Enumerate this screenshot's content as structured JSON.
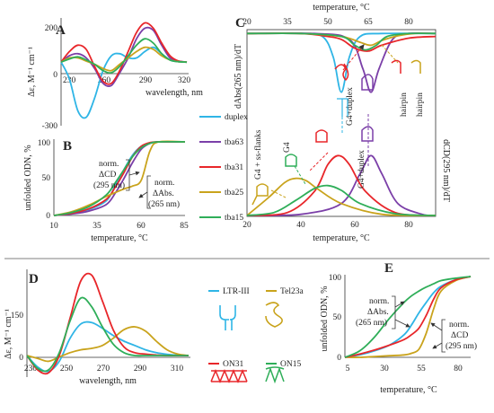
{
  "colors": {
    "blue": "#2fb5e6",
    "purple": "#7b3fa8",
    "red": "#e8262a",
    "gold": "#c9a31c",
    "green": "#2fae59",
    "axis": "#333333"
  },
  "panelA": {
    "letter": "A",
    "ylabel": "Δε, M⁻¹ cm⁻¹",
    "xlabel": "wavelength, nm",
    "yticks": [
      "200",
      "0",
      "-300"
    ],
    "xticks": [
      "230",
      "260",
      "290",
      "320"
    ]
  },
  "panelB": {
    "letter": "B",
    "ylabel": "unfolded ODN, %",
    "xlabel": "temperature, °C",
    "yticks": [
      "100",
      "50",
      "0"
    ],
    "xticks": [
      "10",
      "35",
      "60",
      "85"
    ],
    "anno_cd": [
      "norm.",
      "ΔCD",
      "(295 nm)"
    ],
    "anno_abs": [
      "norm.",
      "ΔAbs.",
      "(265 nm)"
    ]
  },
  "panelC": {
    "letter": "C",
    "top_xlabel": "temperature, °C",
    "top_xticks": [
      "20",
      "35",
      "50",
      "65",
      "80"
    ],
    "bottom_xlabel": "temperature, °C",
    "bottom_xticks": [
      "20",
      "40",
      "60",
      "80"
    ],
    "ylabel_top": "dAbs(265 nm)/dT",
    "ylabel_bottom": "dCD(295 nm)/dT",
    "labels": {
      "g4_duplex_top": "G4+duplex",
      "hairpin_red": "hairpin",
      "hairpin_gold": "hairpin",
      "g4_ssflanks": "G4 + ss-flanks",
      "g4": "G4",
      "g4_duplex_bottom": "G4+duplex"
    }
  },
  "legend_main": [
    {
      "name": "duplex",
      "color": "#2fb5e6"
    },
    {
      "name": "tba63",
      "color": "#7b3fa8"
    },
    {
      "name": "tba31",
      "color": "#e8262a"
    },
    {
      "name": "tba25",
      "color": "#c9a31c"
    },
    {
      "name": "tba15",
      "color": "#2fae59"
    }
  ],
  "panelD": {
    "letter": "D",
    "ylabel": "Δε, M⁻¹ cm⁻¹",
    "xlabel": "wavelength, nm",
    "yticks": [
      "150",
      "0"
    ],
    "xticks": [
      "230",
      "250",
      "270",
      "290",
      "310"
    ],
    "legend": [
      {
        "name": "LTR-III",
        "color": "#2fb5e6"
      },
      {
        "name": "Tel23a",
        "color": "#c9a31c"
      },
      {
        "name": "ON31",
        "color": "#e8262a"
      },
      {
        "name": "ON15",
        "color": "#2fae59"
      }
    ]
  },
  "panelE": {
    "letter": "E",
    "ylabel": "unfolded ODN, %",
    "xlabel": "temperature, °C",
    "yticks": [
      "100",
      "50",
      "0"
    ],
    "xticks": [
      "5",
      "30",
      "55",
      "80"
    ],
    "anno_abs": [
      "norm.",
      "ΔAbs.",
      "(265 nm)"
    ],
    "anno_cd": [
      "norm.",
      "ΔCD",
      "(295 nm)"
    ]
  },
  "chart_data": [
    {
      "panel": "A",
      "type": "line",
      "xlabel": "wavelength, nm",
      "ylabel": "Δε, M⁻¹ cm⁻¹",
      "xlim": [
        230,
        320
      ],
      "ylim": [
        -300,
        200
      ],
      "series": [
        {
          "name": "duplex",
          "x": [
            230,
            236,
            242,
            248,
            254,
            260,
            266,
            272,
            278,
            284,
            290,
            296,
            302,
            308,
            314,
            320
          ],
          "y": [
            0,
            -80,
            -230,
            -260,
            -170,
            -40,
            30,
            40,
            20,
            20,
            50,
            70,
            40,
            10,
            2,
            0
          ]
        },
        {
          "name": "tba63",
          "x": [
            230,
            236,
            242,
            248,
            254,
            260,
            266,
            272,
            278,
            284,
            290,
            296,
            302,
            308,
            314,
            320
          ],
          "y": [
            0,
            30,
            40,
            20,
            -30,
            -100,
            -110,
            -50,
            20,
            110,
            160,
            150,
            80,
            20,
            5,
            0
          ]
        },
        {
          "name": "tba31",
          "x": [
            230,
            236,
            242,
            248,
            254,
            260,
            266,
            272,
            278,
            284,
            290,
            296,
            302,
            308,
            314,
            320
          ],
          "y": [
            0,
            50,
            80,
            60,
            -20,
            -90,
            -100,
            -40,
            50,
            140,
            185,
            160,
            90,
            30,
            5,
            0
          ]
        },
        {
          "name": "tba25",
          "x": [
            230,
            236,
            242,
            248,
            254,
            260,
            266,
            272,
            278,
            284,
            290,
            296,
            302,
            308,
            314,
            320
          ],
          "y": [
            0,
            20,
            20,
            5,
            -10,
            -30,
            -40,
            -10,
            20,
            50,
            70,
            60,
            30,
            10,
            2,
            0
          ]
        },
        {
          "name": "tba15",
          "x": [
            230,
            236,
            242,
            248,
            254,
            260,
            266,
            272,
            278,
            284,
            290,
            296,
            302,
            308,
            314,
            320
          ],
          "y": [
            0,
            15,
            25,
            10,
            -10,
            -40,
            -50,
            -20,
            30,
            80,
            110,
            90,
            40,
            10,
            2,
            0
          ]
        }
      ]
    },
    {
      "panel": "B",
      "type": "line",
      "xlabel": "temperature, °C",
      "ylabel": "unfolded ODN, %",
      "xlim": [
        10,
        85
      ],
      "ylim": [
        0,
        100
      ],
      "series": [
        {
          "name": "duplex",
          "x": [
            10,
            20,
            30,
            40,
            45,
            50,
            55,
            60,
            65,
            70,
            85
          ],
          "y": [
            0,
            3,
            8,
            20,
            40,
            62,
            82,
            94,
            98,
            100,
            100
          ]
        },
        {
          "name": "tba63",
          "x": [
            10,
            20,
            30,
            40,
            45,
            50,
            55,
            60,
            65,
            70,
            85
          ],
          "y": [
            0,
            2,
            6,
            15,
            30,
            50,
            72,
            90,
            98,
            100,
            100
          ]
        },
        {
          "name": "tba31",
          "x": [
            10,
            20,
            30,
            40,
            45,
            50,
            55,
            60,
            65,
            70,
            85
          ],
          "y": [
            0,
            3,
            9,
            22,
            38,
            58,
            80,
            94,
            99,
            100,
            100
          ]
        },
        {
          "name": "tba25",
          "x": [
            10,
            20,
            30,
            40,
            45,
            50,
            55,
            60,
            65,
            70,
            85
          ],
          "y": [
            0,
            5,
            14,
            26,
            31,
            36,
            40,
            48,
            88,
            100,
            100
          ]
        },
        {
          "name": "tba15",
          "x": [
            10,
            20,
            30,
            40,
            45,
            50,
            55,
            60,
            65,
            70,
            85
          ],
          "y": [
            0,
            4,
            12,
            28,
            44,
            62,
            80,
            92,
            98,
            100,
            100
          ]
        }
      ]
    },
    {
      "panel": "C-top",
      "type": "line",
      "xlabel": "temperature, °C",
      "ylabel": "dAbs(265 nm)/dT",
      "xlim": [
        20,
        90
      ],
      "series": [
        {
          "name": "duplex",
          "x": [
            20,
            40,
            48,
            52,
            55,
            58,
            62,
            70,
            90
          ],
          "y": [
            0,
            0,
            -0.05,
            -0.4,
            -1.0,
            -0.4,
            -0.05,
            0,
            0
          ]
        },
        {
          "name": "tba63",
          "x": [
            20,
            45,
            58,
            63,
            66,
            69,
            74,
            80,
            90
          ],
          "y": [
            0,
            0,
            -0.1,
            -0.6,
            -1.0,
            -0.6,
            -0.1,
            0,
            0
          ]
        },
        {
          "name": "tba31",
          "x": [
            20,
            40,
            50,
            55,
            60,
            65,
            70,
            80,
            90
          ],
          "y": [
            0,
            0,
            -0.05,
            -0.1,
            -0.25,
            -0.3,
            -0.2,
            -0.08,
            -0.05
          ]
        },
        {
          "name": "tba25",
          "x": [
            20,
            40,
            55,
            62,
            66,
            70,
            76,
            82,
            90
          ],
          "y": [
            0,
            0,
            -0.05,
            -0.15,
            -0.2,
            -0.12,
            -0.04,
            0,
            0
          ]
        },
        {
          "name": "tba15",
          "x": [
            20,
            40,
            55,
            60,
            64,
            68,
            72,
            80,
            90
          ],
          "y": [
            0,
            0,
            -0.05,
            -0.2,
            -0.28,
            -0.2,
            -0.05,
            0,
            0
          ]
        }
      ]
    },
    {
      "panel": "C-bottom",
      "type": "line",
      "xlabel": "temperature, °C",
      "ylabel": "dCD(295 nm)/dT",
      "xlim": [
        20,
        90
      ],
      "series": [
        {
          "name": "tba63",
          "x": [
            20,
            40,
            55,
            62,
            66,
            70,
            76,
            85,
            90
          ],
          "y": [
            0,
            0.02,
            0.2,
            0.7,
            1.0,
            0.7,
            0.2,
            0.02,
            0
          ]
        },
        {
          "name": "tba31",
          "x": [
            20,
            35,
            45,
            50,
            54,
            58,
            64,
            75,
            90
          ],
          "y": [
            0,
            0.05,
            0.4,
            0.85,
            1.0,
            0.85,
            0.4,
            0.05,
            0
          ]
        },
        {
          "name": "tba25",
          "x": [
            20,
            28,
            34,
            38,
            42,
            46,
            55,
            70,
            90
          ],
          "y": [
            0,
            0.3,
            0.55,
            0.62,
            0.58,
            0.45,
            0.2,
            0.02,
            0
          ]
        },
        {
          "name": "tba15",
          "x": [
            20,
            30,
            38,
            45,
            50,
            55,
            62,
            75,
            90
          ],
          "y": [
            0,
            0.05,
            0.25,
            0.45,
            0.5,
            0.42,
            0.2,
            0.03,
            0
          ]
        }
      ]
    },
    {
      "panel": "D",
      "type": "line",
      "xlabel": "wavelength, nm",
      "ylabel": "Δε, M⁻¹ cm⁻¹",
      "xlim": [
        230,
        320
      ],
      "ylim": [
        -75,
        300
      ],
      "series": [
        {
          "name": "LTR-III",
          "x": [
            230,
            236,
            242,
            248,
            254,
            260,
            266,
            272,
            278,
            284,
            290,
            296,
            302,
            308,
            314,
            320
          ],
          "y": [
            0,
            -40,
            -55,
            -20,
            60,
            110,
            115,
            95,
            70,
            50,
            35,
            20,
            10,
            4,
            1,
            0
          ]
        },
        {
          "name": "Tel23a",
          "x": [
            230,
            236,
            242,
            248,
            254,
            260,
            266,
            272,
            278,
            284,
            290,
            296,
            302,
            308,
            314,
            320
          ],
          "y": [
            0,
            -10,
            -20,
            -5,
            10,
            20,
            25,
            35,
            60,
            90,
            100,
            85,
            50,
            20,
            5,
            0
          ]
        },
        {
          "name": "ON31",
          "x": [
            230,
            236,
            242,
            248,
            254,
            260,
            266,
            272,
            278,
            284,
            290,
            296,
            302,
            308,
            314,
            320
          ],
          "y": [
            0,
            -50,
            -60,
            0,
            130,
            260,
            280,
            190,
            90,
            30,
            10,
            5,
            2,
            0,
            0,
            0
          ]
        },
        {
          "name": "ON15",
          "x": [
            230,
            236,
            242,
            248,
            254,
            260,
            266,
            272,
            278,
            284,
            290,
            296,
            302,
            308,
            314,
            320
          ],
          "y": [
            0,
            -45,
            -50,
            10,
            120,
            200,
            170,
            100,
            40,
            10,
            0,
            0,
            0,
            0,
            0,
            0
          ]
        }
      ]
    },
    {
      "panel": "E",
      "type": "line",
      "xlabel": "temperature, °C",
      "ylabel": "unfolded ODN, %",
      "xlim": [
        5,
        90
      ],
      "ylim": [
        0,
        100
      ],
      "series": [
        {
          "name": "LTR-III",
          "x": [
            5,
            15,
            25,
            35,
            45,
            50,
            55,
            60,
            65,
            70,
            80,
            90
          ],
          "y": [
            0,
            3,
            8,
            15,
            28,
            40,
            55,
            68,
            80,
            88,
            96,
            100
          ]
        },
        {
          "name": "Tel23a",
          "x": [
            5,
            15,
            25,
            35,
            45,
            50,
            55,
            60,
            65,
            70,
            80,
            90
          ],
          "y": [
            0,
            0,
            1,
            2,
            3,
            5,
            10,
            30,
            60,
            82,
            95,
            100
          ]
        },
        {
          "name": "ON31",
          "x": [
            5,
            15,
            25,
            35,
            45,
            50,
            55,
            60,
            65,
            70,
            80,
            90
          ],
          "y": [
            0,
            4,
            9,
            15,
            22,
            28,
            36,
            52,
            72,
            86,
            96,
            100
          ]
        },
        {
          "name": "ON15",
          "x": [
            5,
            15,
            25,
            35,
            45,
            50,
            55,
            60,
            65,
            70,
            80,
            90
          ],
          "y": [
            0,
            8,
            25,
            48,
            68,
            76,
            82,
            87,
            91,
            95,
            98,
            100
          ]
        }
      ]
    }
  ]
}
